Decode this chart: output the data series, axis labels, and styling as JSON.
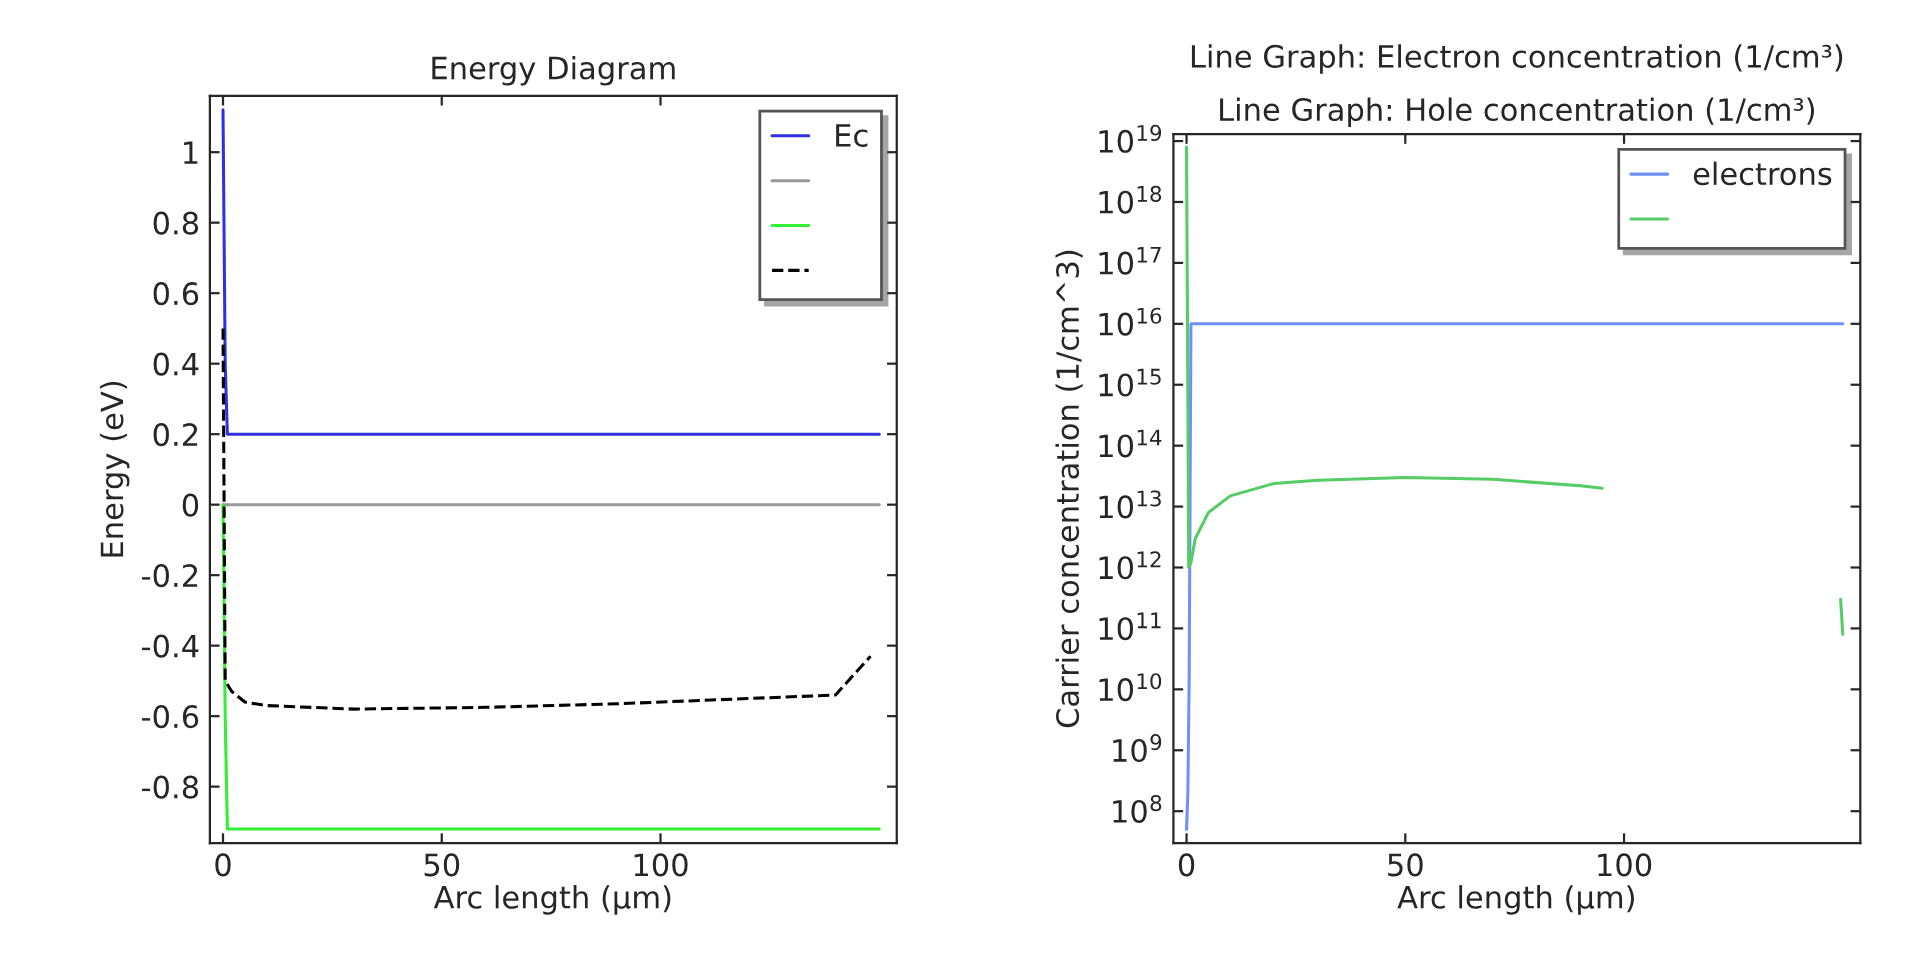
{
  "chart_data": [
    {
      "type": "line",
      "title": "Energy Diagram",
      "xlabel": "Arc length (µm)",
      "ylabel": "Energy (eV)",
      "xlim": [
        -3,
        154
      ],
      "ylim": [
        -0.96,
        1.16
      ],
      "xticks": [
        0,
        50,
        100
      ],
      "yticks": [
        -0.8,
        -0.6,
        -0.4,
        -0.2,
        0,
        0.2,
        0.4,
        0.6,
        0.8,
        1
      ],
      "grid": false,
      "legend": "top right",
      "marker": "none",
      "series": [
        {
          "name": "Ec",
          "color": "#3030e0",
          "x": [
            0,
            0.5,
            1,
            150
          ],
          "values": [
            1.12,
            0.4,
            0.2,
            0.2
          ]
        },
        {
          "color": "#999999",
          "x": [
            0,
            150
          ],
          "values": [
            0,
            0
          ]
        },
        {
          "color": "#33ee33",
          "x": [
            0,
            0.5,
            1,
            150
          ],
          "values": [
            0,
            -0.6,
            -0.92,
            -0.92
          ]
        },
        {
          "color": "#000000",
          "line_style": "dashed",
          "x": [
            0,
            0.5,
            2,
            5,
            10,
            30,
            60,
            90,
            120,
            140,
            148
          ],
          "values": [
            0.5,
            -0.5,
            -0.53,
            -0.56,
            -0.57,
            -0.58,
            -0.575,
            -0.565,
            -0.55,
            -0.54,
            -0.43
          ]
        }
      ]
    },
    {
      "type": "line",
      "title": "Line Graph: Electron concentration (1/cm³)",
      "subtitle": "Line Graph: Hole concentration (1/cm³)",
      "xlabel": "Arc length (µm)",
      "ylabel": "Carrier concentration (1/cm^3)",
      "log": "y",
      "xlim": [
        -3,
        154
      ],
      "ylim": [
        30000000.0,
        1.3e+19
      ],
      "xticks": [
        0,
        50,
        100
      ],
      "yticks": [
        {
          "value": 100000000.0,
          "label": "10$^{8}$"
        },
        {
          "value": 1000000000.0,
          "label": "10$^{9}$"
        },
        {
          "value": 10000000000.0,
          "label": "10$^{10}$"
        },
        {
          "value": 100000000000.0,
          "label": "10$^{11}$"
        },
        {
          "value": 1000000000000.0,
          "label": "10$^{12}$"
        },
        {
          "value": 10000000000000.0,
          "label": "10$^{13}$"
        },
        {
          "value": 100000000000000.0,
          "label": "10$^{14}$"
        },
        {
          "value": 1000000000000000.0,
          "label": "10$^{15}$"
        },
        {
          "value": 1e+16,
          "label": "10$^{16}$"
        },
        {
          "value": 1e+17,
          "label": "10$^{17}$"
        },
        {
          "value": 1e+18,
          "label": "10$^{18}$"
        },
        {
          "value": 1e+19,
          "label": "10$^{19}$"
        }
      ],
      "grid": false,
      "legend": "top right",
      "marker": "none",
      "series": [
        {
          "name": "electrons",
          "color": "#6f8fff",
          "x": [
            0,
            0.3,
            0.6,
            1,
            150
          ],
          "values": [
            50000000.0,
            200000000.0,
            15000000000.0,
            1e+16,
            1e+16
          ]
        },
        {
          "color": "#55cc66",
          "x": [
            0,
            0.5,
            1,
            2,
            5,
            10,
            20,
            30,
            50,
            70,
            90,
            95,
            120,
            149.5,
            150
          ],
          "values": [
            8e+18,
            1000000000000.0,
            1200000000000.0,
            3000000000000.0,
            8000000000000.0,
            15000000000000.0,
            24000000000000.0,
            27000000000000.0,
            30000000000000.0,
            28000000000000.0,
            22000000000000.0,
            20000000000000.0,
            null,
            300000000000.0,
            80000000000.0
          ]
        }
      ]
    }
  ]
}
